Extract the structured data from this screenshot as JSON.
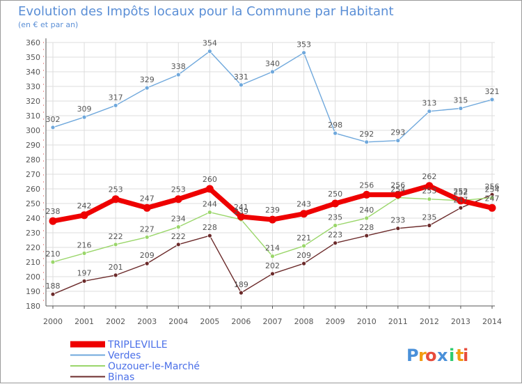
{
  "chart_data": {
    "type": "line",
    "title": "Evolution des Impôts locaux pour la Commune par Habitant",
    "subtitle": "(en € et par an)",
    "x": [
      "2000",
      "2001",
      "2002",
      "2003",
      "2004",
      "2005",
      "2006",
      "2007",
      "2008",
      "2009",
      "2010",
      "2011",
      "2012",
      "2013",
      "2014"
    ],
    "ylim": [
      180,
      360
    ],
    "yticks": [
      180,
      190,
      200,
      210,
      220,
      230,
      240,
      250,
      260,
      270,
      280,
      290,
      300,
      310,
      320,
      330,
      340,
      350,
      360
    ],
    "grid": true,
    "legend_placement": "bottom-left",
    "series": [
      {
        "name": "TRIPLEVILLE",
        "color": "#ee0000",
        "values": [
          238,
          242,
          253,
          247,
          253,
          260,
          241,
          239,
          243,
          250,
          256,
          256,
          262,
          252,
          247
        ]
      },
      {
        "name": "Verdes",
        "color": "#6fa8dc",
        "values": [
          302,
          309,
          317,
          329,
          338,
          354,
          331,
          340,
          353,
          298,
          292,
          293,
          313,
          315,
          321
        ]
      },
      {
        "name": "Ouzouer-le-Marché",
        "color": "#9ad66a",
        "values": [
          210,
          216,
          222,
          227,
          234,
          244,
          239,
          214,
          221,
          235,
          240,
          254,
          253,
          252,
          254
        ]
      },
      {
        "name": "Binas",
        "color": "#6b2a2a",
        "values": [
          188,
          197,
          201,
          209,
          222,
          228,
          189,
          202,
          209,
          223,
          228,
          233,
          235,
          247,
          256
        ]
      }
    ]
  },
  "colors": {
    "title": "#5b8fd6",
    "legend_text": "#4a6fe8",
    "axis": "#555555",
    "grid": "#dddddd",
    "label": "#555555"
  },
  "branding": {
    "logo_text": "Proxiti",
    "logo_letters": [
      "P",
      "r",
      "o",
      "x",
      "i",
      "t",
      "i"
    ],
    "logo_colors": [
      "#4a90d9",
      "#f39c12",
      "#e74c3c",
      "#4a90d9",
      "#2ecc71",
      "#f39c12",
      "#e74c3c"
    ]
  }
}
